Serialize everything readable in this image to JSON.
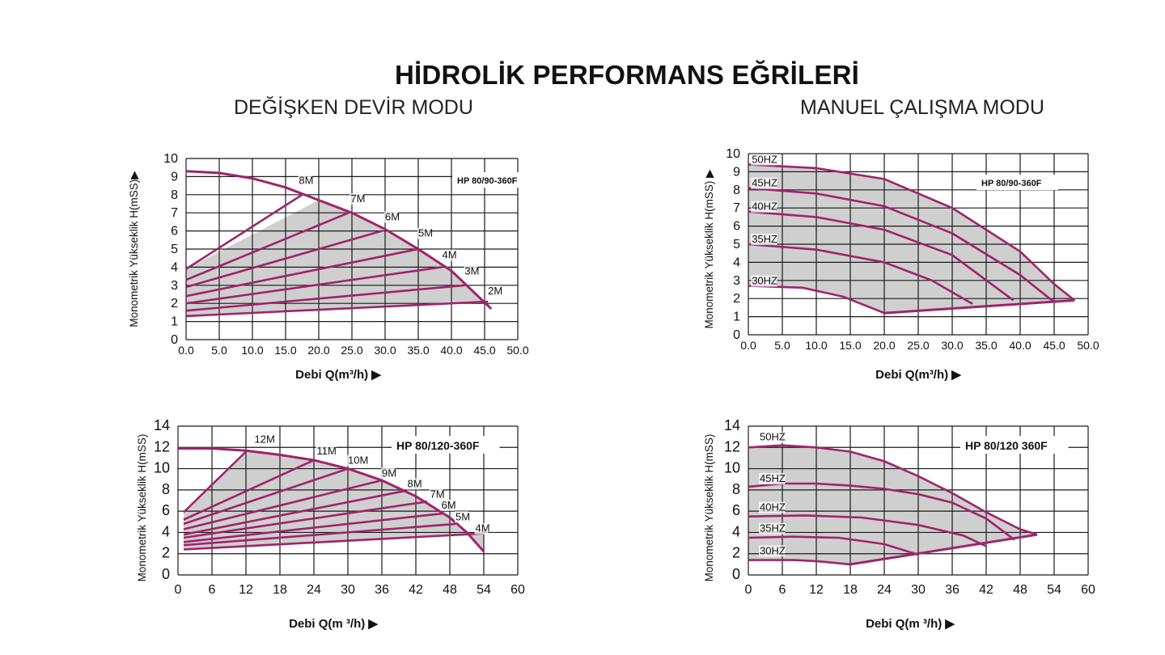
{
  "page": {
    "main_title": "HİDROLİK PERFORMANS EĞRİLERİ",
    "left_section_title": "DEĞİŞKEN DEVİR MODU",
    "right_section_title": "MANUEL ÇALIŞMA MODU"
  },
  "colors": {
    "curve": "#a0236b",
    "fill": "#cfcfcf",
    "grid": "#1a1a1a",
    "text": "#111111"
  },
  "chart_data": [
    {
      "id": "hp80-90-variable",
      "type": "line",
      "title": "HP 80/90-360F",
      "xlabel": "Debi Q(m³/h) ▶",
      "ylabel": "Monometrik Yükseklik H(mSS)▶",
      "x_ticks": [
        "0.0",
        "5.0",
        "10.0",
        "15.0",
        "20.0",
        "25.0",
        "30.0",
        "35.0",
        "40.0",
        "45.0",
        "50.0"
      ],
      "y_ticks": [
        "0",
        "1",
        "2",
        "3",
        "4",
        "5",
        "6",
        "7",
        "8",
        "9",
        "10"
      ],
      "xlim": [
        0,
        50
      ],
      "ylim": [
        0,
        10
      ],
      "grid": true,
      "max_curve": [
        [
          0,
          9.3
        ],
        [
          5,
          9.2
        ],
        [
          10,
          8.9
        ],
        [
          15,
          8.4
        ],
        [
          20,
          7.7
        ],
        [
          25,
          7
        ],
        [
          30,
          6.1
        ],
        [
          35,
          5
        ],
        [
          40,
          3.8
        ],
        [
          44,
          2.4
        ],
        [
          46,
          1.7
        ]
      ],
      "series": [
        {
          "name": "8M",
          "points": [
            [
              0,
              3.9
            ],
            [
              17.5,
              8
            ]
          ]
        },
        {
          "name": "7M",
          "points": [
            [
              0,
              3.3
            ],
            [
              24.5,
              7
            ]
          ]
        },
        {
          "name": "6M",
          "points": [
            [
              0,
              2.9
            ],
            [
              29.5,
              6
            ]
          ]
        },
        {
          "name": "5M",
          "points": [
            [
              0,
              2.4
            ],
            [
              35,
              5
            ]
          ]
        },
        {
          "name": "4M",
          "points": [
            [
              0,
              2
            ],
            [
              38.5,
              4
            ]
          ]
        },
        {
          "name": "3M",
          "points": [
            [
              0,
              1.6
            ],
            [
              42,
              3
            ]
          ]
        },
        {
          "name": "2M",
          "points": [
            [
              0,
              1.3
            ],
            [
              45.5,
              2.1
            ]
          ]
        }
      ]
    },
    {
      "id": "hp80-90-manual",
      "type": "line",
      "title": "HP 80/90-360F",
      "xlabel": "Debi Q(m³/h) ▶",
      "ylabel": "Monometrik Yükseklik H(mSS) ▶",
      "x_ticks": [
        "0.0",
        "5.0",
        "10.0",
        "15.0",
        "20.0",
        "25.0",
        "30.0",
        "35.0",
        "40.0",
        "45.0",
        "50.0"
      ],
      "y_ticks": [
        "0",
        "1",
        "2",
        "3",
        "4",
        "5",
        "6",
        "7",
        "8",
        "9",
        "10"
      ],
      "xlim": [
        0,
        50
      ],
      "ylim": [
        0,
        10
      ],
      "grid": true,
      "min_line": [
        [
          20,
          1.2
        ],
        [
          48,
          1.9
        ]
      ],
      "series": [
        {
          "name": "50HZ",
          "points": [
            [
              0,
              9.4
            ],
            [
              10,
              9.2
            ],
            [
              20,
              8.6
            ],
            [
              30,
              7
            ],
            [
              40,
              4.6
            ],
            [
              45,
              2.8
            ],
            [
              48,
              1.9
            ]
          ]
        },
        {
          "name": "45HZ",
          "points": [
            [
              0,
              8.1
            ],
            [
              10,
              7.8
            ],
            [
              20,
              7.1
            ],
            [
              30,
              5.6
            ],
            [
              40,
              3.3
            ],
            [
              45,
              1.8
            ]
          ]
        },
        {
          "name": "40HZ",
          "points": [
            [
              0,
              6.8
            ],
            [
              10,
              6.5
            ],
            [
              20,
              5.8
            ],
            [
              30,
              4.4
            ],
            [
              39,
              1.9
            ]
          ]
        },
        {
          "name": "35HZ",
          "points": [
            [
              0,
              5
            ],
            [
              10,
              4.7
            ],
            [
              20,
              4
            ],
            [
              27,
              3
            ],
            [
              33,
              1.7
            ]
          ]
        },
        {
          "name": "30HZ",
          "points": [
            [
              0,
              2.7
            ],
            [
              8,
              2.6
            ],
            [
              14,
              2.1
            ],
            [
              20,
              1.2
            ]
          ]
        }
      ]
    },
    {
      "id": "hp80-120-variable",
      "type": "line",
      "title": "HP 80/120-360F",
      "xlabel": "Debi Q(m ³/h) ▶",
      "ylabel": "Monometrik Yükseklik H(mSS)",
      "x_ticks": [
        "0",
        "6",
        "12",
        "18",
        "24",
        "30",
        "36",
        "42",
        "48",
        "54",
        "60"
      ],
      "y_ticks": [
        "0",
        "2",
        "4",
        "6",
        "8",
        "10",
        "12",
        "14"
      ],
      "xlim": [
        0,
        60
      ],
      "ylim": [
        0,
        14
      ],
      "grid": true,
      "max_curve": [
        [
          0,
          11.9
        ],
        [
          6,
          11.9
        ],
        [
          12,
          11.7
        ],
        [
          18,
          11.3
        ],
        [
          24,
          10.8
        ],
        [
          30,
          10
        ],
        [
          36,
          8.9
        ],
        [
          42,
          7.4
        ],
        [
          48,
          5.4
        ],
        [
          51,
          4
        ],
        [
          54,
          2.2
        ]
      ],
      "series": [
        {
          "name": "12M",
          "points": [
            [
              1,
              5.9
            ],
            [
              12,
              11.6
            ]
          ]
        },
        {
          "name": "11M",
          "points": [
            [
              1,
              5.2
            ],
            [
              24,
              10.8
            ]
          ]
        },
        {
          "name": "10M",
          "points": [
            [
              1,
              4.8
            ],
            [
              30,
              10
            ]
          ]
        },
        {
          "name": "9M",
          "points": [
            [
              1,
              4.3
            ],
            [
              36,
              8.9
            ]
          ]
        },
        {
          "name": "8M",
          "points": [
            [
              1,
              3.8
            ],
            [
              40,
              7.9
            ]
          ]
        },
        {
          "name": "7M",
          "points": [
            [
              1,
              3.5
            ],
            [
              44,
              6.9
            ]
          ]
        },
        {
          "name": "6M",
          "points": [
            [
              1,
              3.1
            ],
            [
              47,
              5.8
            ]
          ]
        },
        {
          "name": "5M",
          "points": [
            [
              1,
              2.8
            ],
            [
              49,
              4.8
            ]
          ]
        },
        {
          "name": "4M",
          "points": [
            [
              1,
              2.4
            ],
            [
              54,
              3.9
            ]
          ]
        }
      ]
    },
    {
      "id": "hp80-120-manual",
      "type": "line",
      "title": "HP 80/120 360F",
      "xlabel": "Debi Q(m ³/h) ▶",
      "ylabel": "Monometrik Yükseklik H(mSS)",
      "x_ticks": [
        "0",
        "6",
        "12",
        "18",
        "24",
        "30",
        "36",
        "42",
        "48",
        "54",
        "60"
      ],
      "y_ticks": [
        "0",
        "2",
        "4",
        "6",
        "8",
        "10",
        "12",
        "14"
      ],
      "xlim": [
        0,
        60
      ],
      "ylim": [
        0,
        14
      ],
      "grid": true,
      "min_line": [
        [
          18,
          1
        ],
        [
          51,
          3.8
        ]
      ],
      "series": [
        {
          "name": "50HZ",
          "points": [
            [
              0,
              12
            ],
            [
              6,
              12.2
            ],
            [
              12,
              12
            ],
            [
              18,
              11.6
            ],
            [
              24,
              10.7
            ],
            [
              30,
              9.3
            ],
            [
              36,
              7.7
            ],
            [
              42,
              5.9
            ],
            [
              48,
              4.3
            ],
            [
              51,
              3.8
            ]
          ]
        },
        {
          "name": "45HZ",
          "points": [
            [
              0,
              8.3
            ],
            [
              6,
              8.6
            ],
            [
              12,
              8.6
            ],
            [
              18,
              8.4
            ],
            [
              24,
              8.1
            ],
            [
              30,
              7.6
            ],
            [
              36,
              6.8
            ],
            [
              42,
              5.3
            ],
            [
              47,
              3.3
            ]
          ]
        },
        {
          "name": "40HZ",
          "points": [
            [
              0,
              5.5
            ],
            [
              10,
              5.6
            ],
            [
              20,
              5.4
            ],
            [
              30,
              4.7
            ],
            [
              38,
              3.7
            ],
            [
              42,
              2.7
            ]
          ]
        },
        {
          "name": "35HZ",
          "points": [
            [
              0,
              3.5
            ],
            [
              8,
              3.6
            ],
            [
              16,
              3.5
            ],
            [
              24,
              2.9
            ],
            [
              30,
              1.9
            ]
          ]
        },
        {
          "name": "30HZ",
          "points": [
            [
              0,
              1.4
            ],
            [
              8,
              1.4
            ],
            [
              12,
              1.3
            ],
            [
              18,
              1
            ]
          ]
        }
      ]
    }
  ]
}
